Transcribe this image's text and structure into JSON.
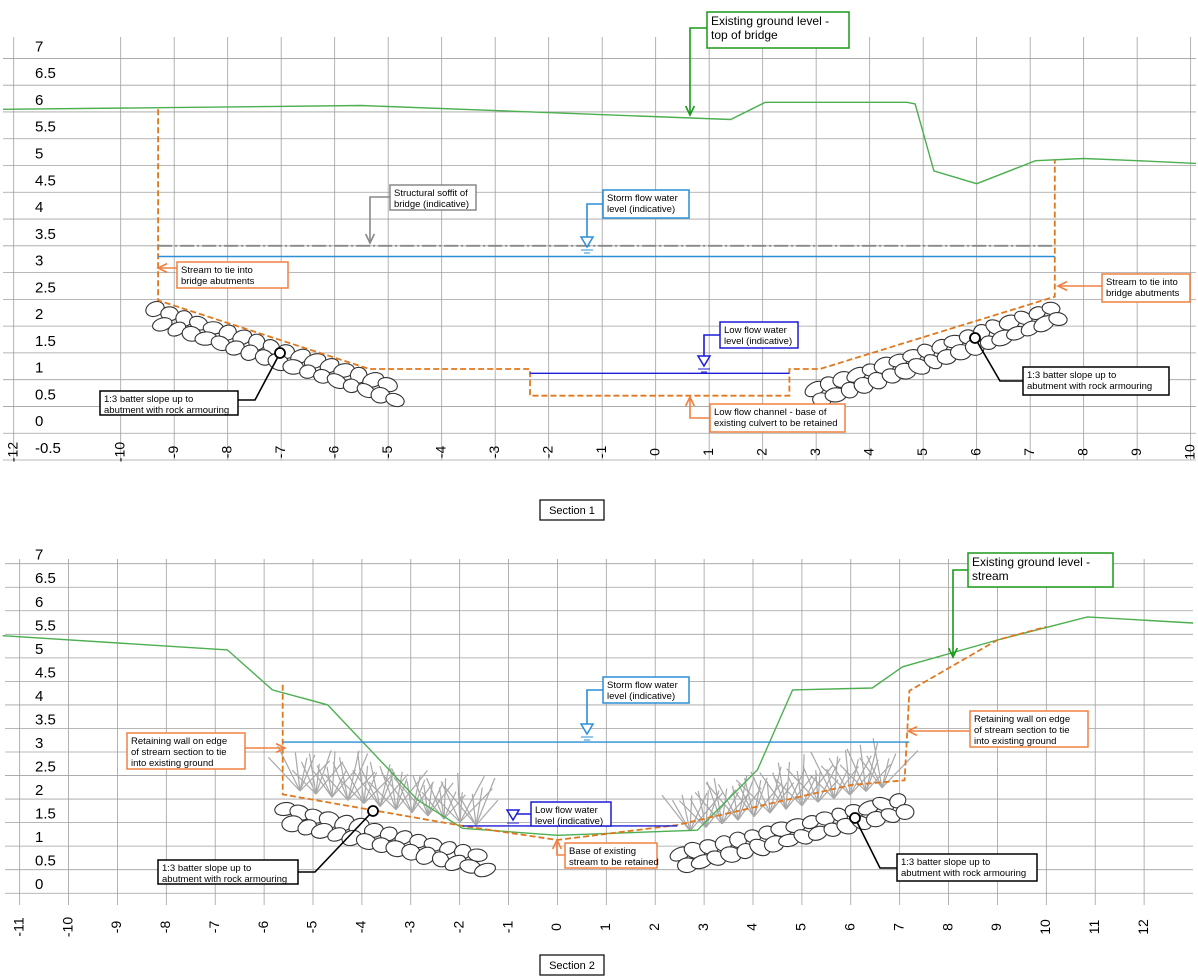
{
  "chart_data": [
    {
      "type": "line",
      "title": "Section 1",
      "xlim": [
        -12.2,
        10.1
      ],
      "xticks": [
        -12,
        -10,
        -9,
        -8,
        -7,
        -6,
        -5,
        -4,
        -3,
        -2,
        -1,
        0,
        1,
        2,
        3,
        4,
        5,
        6,
        7,
        8,
        9,
        10
      ],
      "ylim": [
        -0.5,
        7.4
      ],
      "yticks": [
        7,
        6.5,
        6,
        5.5,
        5,
        4.5,
        4,
        3.5,
        3,
        2.5,
        2,
        1.5,
        1,
        0.5,
        0,
        -0.5
      ],
      "grid": true,
      "series": [
        {
          "color": "#4caf50",
          "style": "solid",
          "x": [
            -12.2,
            -9.3,
            -5.5,
            1.4,
            2.05,
            4.7,
            4.85,
            5.2,
            6.0,
            7.1,
            8,
            9,
            10.1
          ],
          "values": [
            6.05,
            6.08,
            6.12,
            5.86,
            6.18,
            6.18,
            6.15,
            4.9,
            4.66,
            5.09,
            5.13,
            5.09,
            5.04
          ]
        },
        {
          "color": "#e0781e",
          "style": "dashed",
          "x": [
            -9.3,
            -9.3,
            -5.35,
            -2.35,
            -2.35,
            2.5,
            2.5,
            3.07,
            7.46,
            7.46
          ],
          "values": [
            6.05,
            2.48,
            1.2,
            1.2,
            0.7,
            0.7,
            1.2,
            1.2,
            2.55,
            5.1
          ]
        },
        {
          "color": "#888888",
          "style": "dashdot",
          "x": [
            -9.3,
            7.46
          ],
          "values": [
            3.5,
            3.5
          ]
        },
        {
          "color": "#2a8fd6",
          "style": "solid",
          "x": [
            -9.3,
            7.46
          ],
          "values": [
            3.3,
            3.3
          ]
        },
        {
          "color": "#1c1cd6",
          "style": "solid",
          "x": [
            -2.35,
            2.5
          ],
          "values": [
            1.12,
            1.12
          ]
        }
      ],
      "annotations": [
        {
          "color": "#1a9a1a",
          "lines": [
            "Existing ground level -",
            "top of bridge"
          ]
        },
        {
          "color": "#888888",
          "lines": [
            "Structural soffit of",
            "bridge (indicative)"
          ]
        },
        {
          "color": "#2a8fd6",
          "lines": [
            "Storm flow water",
            "level (indicative)"
          ]
        },
        {
          "color": "#f08040",
          "lines": [
            "Stream to tie into",
            "bridge abutments"
          ]
        },
        {
          "color": "#f08040",
          "lines": [
            "Stream to tie into",
            "bridge abutments"
          ]
        },
        {
          "color": "#1c1cd6",
          "lines": [
            "Low flow water",
            "level (indicative)"
          ]
        },
        {
          "color": "#000000",
          "lines": [
            "1:3 batter slope up to",
            "abutment with rock armouring"
          ]
        },
        {
          "color": "#000000",
          "lines": [
            "1:3 batter slope up to",
            "abutment with rock armouring"
          ]
        },
        {
          "color": "#f08040",
          "lines": [
            "Low flow channel - base of",
            "existing culvert to be retained"
          ]
        }
      ]
    },
    {
      "type": "line",
      "title": "Section 2",
      "xlim": [
        -11.3,
        13.0
      ],
      "xticks": [
        -11,
        -10,
        -9,
        -8,
        -7,
        -6,
        -5,
        -4,
        -3,
        -2,
        -1,
        0,
        1,
        2,
        3,
        4,
        5,
        6,
        7,
        8,
        9,
        10,
        11,
        12
      ],
      "ylim": [
        -0.25,
        7.1
      ],
      "yticks": [
        7,
        6.5,
        6,
        5.5,
        5,
        4.5,
        4,
        3.5,
        3,
        2.5,
        2,
        1.5,
        1,
        0.5,
        0
      ],
      "grid": true,
      "series": [
        {
          "color": "#4caf50",
          "style": "solid",
          "x": [
            -11.35,
            -6.75,
            -5.83,
            -4.7,
            -2.86,
            -1.94,
            0,
            2.86,
            4.09,
            4.81,
            6.44,
            7.06,
            9.0,
            10.84,
            13.0
          ],
          "values": [
            5.47,
            5.17,
            4.32,
            4.0,
            1.98,
            1.38,
            1.23,
            1.34,
            2.62,
            4.32,
            4.36,
            4.81,
            5.38,
            5.87,
            5.74
          ]
        },
        {
          "color": "#e0781e",
          "style": "dashed",
          "x": [
            -5.62,
            -5.62,
            -1.94,
            0,
            2.45,
            6.0,
            7.1,
            7.2,
            9.0,
            10.0
          ],
          "values": [
            4.43,
            2.1,
            1.43,
            1.13,
            1.45,
            2.3,
            2.4,
            4.3,
            5.38,
            5.66
          ]
        },
        {
          "color": "#2a8fd6",
          "style": "solid",
          "x": [
            -5.62,
            7.2
          ],
          "values": [
            3.21,
            3.21
          ]
        },
        {
          "color": "#1c1cd6",
          "style": "solid",
          "x": [
            -1.94,
            2.45
          ],
          "values": [
            1.43,
            1.43
          ]
        }
      ],
      "annotations": [
        {
          "color": "#1a9a1a",
          "lines": [
            "Existing ground level -",
            "stream"
          ]
        },
        {
          "color": "#2a8fd6",
          "lines": [
            "Storm flow water",
            "level (indicative)"
          ]
        },
        {
          "color": "#f08040",
          "lines": [
            "Retaining wall on edge",
            "of stream section to tie",
            "into existing ground"
          ]
        },
        {
          "color": "#f08040",
          "lines": [
            "Retaining wall on edge",
            "of stream section to tie",
            "into existing ground"
          ]
        },
        {
          "color": "#1c1cd6",
          "lines": [
            "Low flow water",
            "level (indicative)"
          ]
        },
        {
          "color": "#000000",
          "lines": [
            "1:3 batter slope up to",
            "abutment with rock armouring"
          ]
        },
        {
          "color": "#000000",
          "lines": [
            "1:3 batter slope up to",
            "abutment with rock armouring"
          ]
        },
        {
          "color": "#f08040",
          "lines": [
            "Base of existing",
            "stream to be retained"
          ]
        }
      ]
    }
  ]
}
